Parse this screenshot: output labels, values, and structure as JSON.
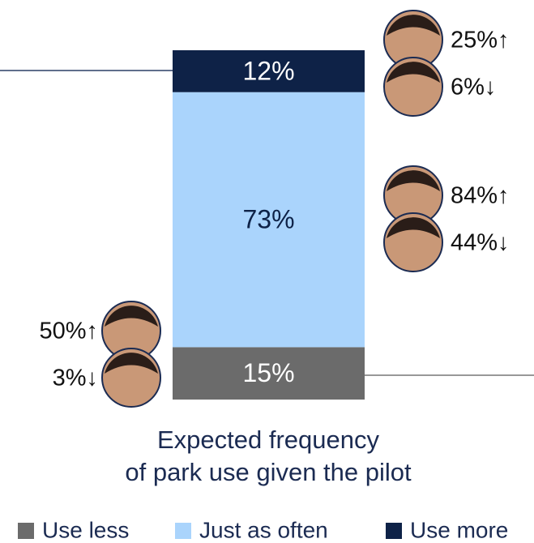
{
  "chart_data": {
    "type": "stacked_bar",
    "categories": [
      null
    ],
    "ylim": [
      0,
      100
    ],
    "x_label_lines": [
      "Expected frequency",
      "of park use given the pilot"
    ],
    "series": [
      {
        "name": "Use less",
        "color": "#6b6b6b",
        "values": [
          15
        ],
        "value_labels": [
          "15%"
        ],
        "annotations": [
          "50%↑",
          "3%↓"
        ]
      },
      {
        "name": "Just as often",
        "color": "#aad4fc",
        "values": [
          73
        ],
        "value_labels": [
          "73%"
        ],
        "annotations": [
          "84%↑",
          "44%↓"
        ]
      },
      {
        "name": "Use more",
        "color": "#0e2247",
        "values": [
          12
        ],
        "value_labels": [
          "12%"
        ],
        "annotations": [
          "25%↑",
          "6%↓"
        ]
      }
    ]
  }
}
